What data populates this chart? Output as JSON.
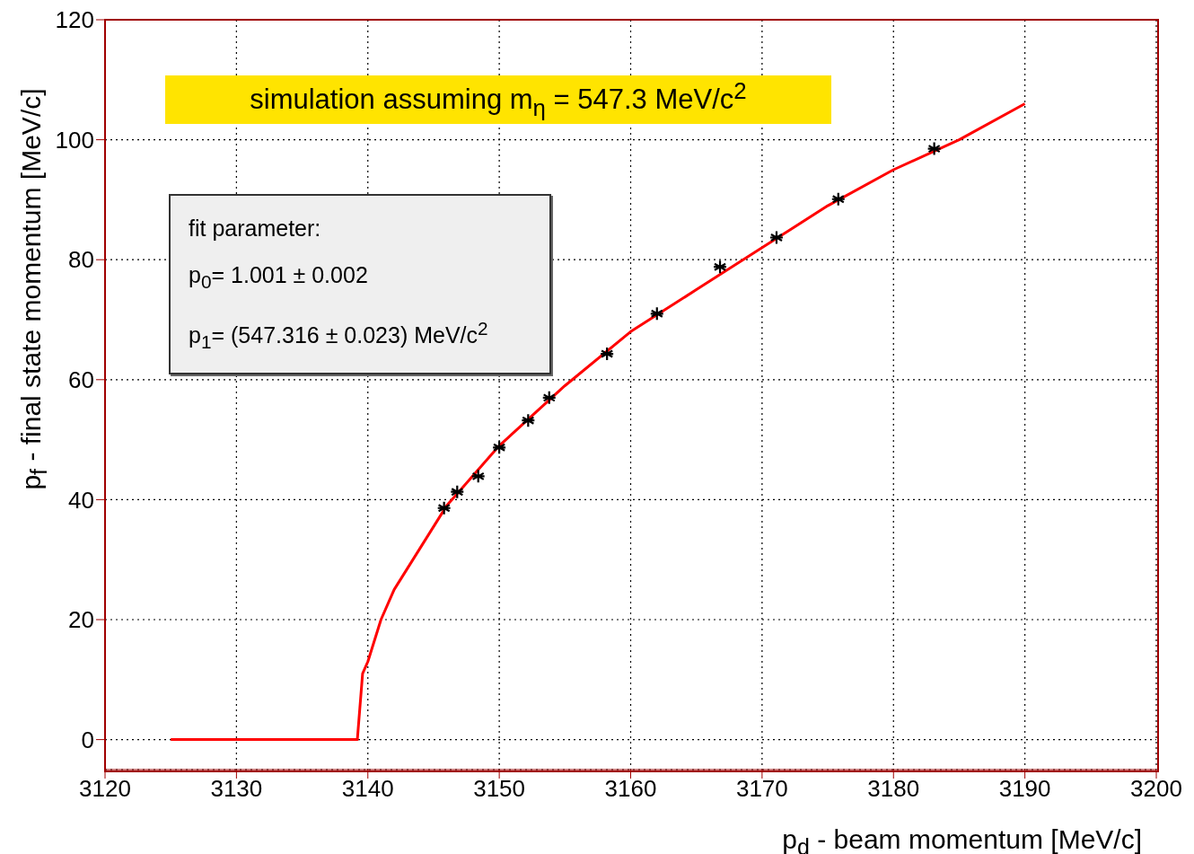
{
  "chart_data": {
    "type": "scatter",
    "xlabel": "p$_{d}$ - beam momentum [MeV/c]",
    "ylabel": "p$_{f}$ - final state momentum [MeV/c]",
    "xlim": [
      3120,
      3200
    ],
    "ylim": [
      -5,
      120
    ],
    "xticks": [
      3120,
      3130,
      3140,
      3150,
      3160,
      3170,
      3180,
      3190,
      3200
    ],
    "yticks": [
      0,
      20,
      40,
      60,
      80,
      100,
      120
    ],
    "grid": true,
    "annotations": [
      "simulation assuming m$_{η}$ = 547.3 MeV/c$^{2}$",
      "fit parameter:",
      "p$_{0}$= 1.001 ± 0.002",
      "p$_{1}$= (547.316 ± 0.023) MeV/c$^{2}$"
    ],
    "series": [
      {
        "type": "line",
        "color": "#ff0000",
        "marker": "none",
        "line_style": "solid",
        "x": [
          3125,
          3130,
          3135,
          3139.2,
          3139.6,
          3140,
          3141,
          3142,
          3144,
          3146,
          3150,
          3155,
          3160,
          3165,
          3170,
          3175,
          3180,
          3185,
          3190
        ],
        "values": [
          0,
          0,
          0,
          0,
          11,
          13,
          20,
          25,
          32,
          39,
          49,
          59,
          68,
          75,
          82,
          89,
          95,
          100,
          106
        ]
      },
      {
        "color": "#000000",
        "marker": "cross",
        "x": [
          3145.8,
          3146.8,
          3148.4,
          3150.0,
          3152.2,
          3153.8,
          3158.2,
          3162.0,
          3166.8,
          3171.1,
          3175.8,
          3183.1
        ],
        "values": [
          38.6,
          41.3,
          43.9,
          48.7,
          53.2,
          57.0,
          64.3,
          71.0,
          78.8,
          83.7,
          90.1,
          98.5
        ]
      }
    ]
  }
}
